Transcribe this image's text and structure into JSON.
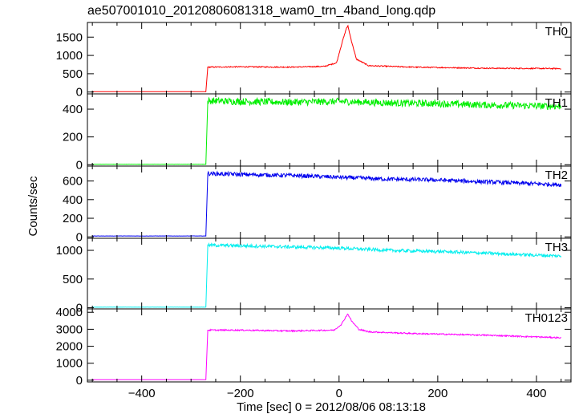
{
  "chart_data": {
    "type": "line",
    "title": "ae507001010_20120806081318_wam0_trn_4band_long.qdp",
    "xlabel": "Time [sec] 0 = 2012/08/06 08:13:18",
    "ylabel": "Counts/sec",
    "xlim": [
      -510,
      470
    ],
    "x_ticks": [
      -400,
      -200,
      0,
      200,
      400
    ],
    "x_tick_labels": [
      "−400",
      "−200",
      "0",
      "200",
      "400"
    ],
    "panels": [
      {
        "label": "TH0",
        "color": "#ff0000",
        "ylim": [
          -50,
          1900
        ],
        "y_ticks": [
          0,
          500,
          1000,
          1500
        ],
        "series": [
          {
            "x": [
              -500,
              -270,
              -266,
              -200,
              -100,
              -30,
              -5,
              5,
              15,
              18,
              25,
              35,
              60,
              150,
              300,
              450
            ],
            "y": [
              10,
              10,
              680,
              690,
              680,
              700,
              800,
              1300,
              1750,
              1800,
              1400,
              900,
              720,
              680,
              650,
              640
            ]
          }
        ],
        "noise": 15
      },
      {
        "label": "TH1",
        "color": "#00ee00",
        "ylim": [
          -10,
          510
        ],
        "y_ticks": [
          0,
          200,
          400
        ],
        "series": [
          {
            "x": [
              -500,
              -270,
              -266,
              -200,
              -100,
              0,
              100,
              200,
              300,
              450
            ],
            "y": [
              3,
              3,
              460,
              455,
              450,
              455,
              445,
              440,
              430,
              420
            ]
          }
        ],
        "noise": 25
      },
      {
        "label": "TH2",
        "color": "#0000ee",
        "ylim": [
          -15,
          760
        ],
        "y_ticks": [
          0,
          200,
          400,
          600
        ],
        "series": [
          {
            "x": [
              -500,
              -270,
              -266,
              -200,
              -100,
              0,
              100,
              200,
              300,
              450
            ],
            "y": [
              10,
              10,
              680,
              670,
              660,
              640,
              620,
              610,
              590,
              560
            ]
          }
        ],
        "noise": 22
      },
      {
        "label": "TH3",
        "color": "#00eeee",
        "ylim": [
          -20,
          1210
        ],
        "y_ticks": [
          0,
          500,
          1000
        ],
        "series": [
          {
            "x": [
              -500,
              -270,
              -266,
              -200,
              -100,
              0,
              100,
              200,
              300,
              450
            ],
            "y": [
              10,
              10,
              1090,
              1080,
              1060,
              1040,
              1000,
              980,
              950,
              900
            ]
          }
        ],
        "noise": 28
      },
      {
        "label": "TH0123",
        "color": "#ff00ff",
        "ylim": [
          -100,
          4200
        ],
        "y_ticks": [
          0,
          1000,
          2000,
          3000,
          4000
        ],
        "series": [
          {
            "x": [
              -500,
              -270,
              -266,
              -200,
              -100,
              -10,
              5,
              15,
              18,
              25,
              40,
              60,
              150,
              300,
              450
            ],
            "y": [
              30,
              30,
              2950,
              2950,
              2900,
              2950,
              3300,
              3800,
              3900,
              3500,
              3000,
              2850,
              2750,
              2650,
              2500
            ]
          }
        ],
        "noise": 40
      }
    ]
  }
}
